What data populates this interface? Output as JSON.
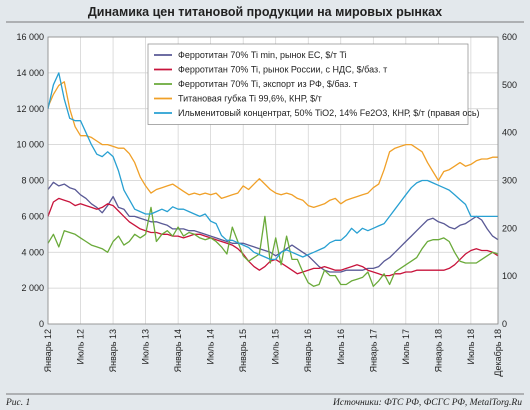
{
  "chart_data": {
    "type": "line",
    "title": "Динамика цен титановой продукции на мировых рынках",
    "x_labels": [
      "Январь 12",
      "Июль 12",
      "Январь 13",
      "Июль 13",
      "Январь 14",
      "Июль 14",
      "Январь 15",
      "Июль 15",
      "Январь 16",
      "Июль 16",
      "Январь 17",
      "Июль 17",
      "Январь 18",
      "Июль 18",
      "Декабрь 18"
    ],
    "x_label_months": [
      0,
      6,
      12,
      18,
      24,
      30,
      36,
      42,
      48,
      54,
      60,
      66,
      72,
      78,
      83
    ],
    "ylim_left": [
      0,
      16000
    ],
    "yticks_left": [
      "0",
      "2 000",
      "4 000",
      "6 000",
      "8 000",
      "10 000",
      "12 000",
      "14 000",
      "16 000"
    ],
    "ylim_right": [
      0,
      600
    ],
    "yticks_right": [
      "0",
      "100",
      "200",
      "300",
      "400",
      "500",
      "600"
    ],
    "grid": true,
    "legend_position": "top-right",
    "series": [
      {
        "name": "Ферротитан 70% Ti min, рынок ЕС, $/т Ti",
        "color": "#5a5a96",
        "axis": "left",
        "values": [
          7500,
          7900,
          7700,
          7800,
          7600,
          7500,
          7200,
          7000,
          6700,
          6500,
          6200,
          6600,
          7100,
          6500,
          6400,
          6000,
          6000,
          5900,
          5800,
          5700,
          5700,
          5600,
          5500,
          5300,
          5300,
          5300,
          5200,
          5200,
          5100,
          5000,
          4900,
          4800,
          4700,
          4600,
          4500,
          4500,
          4500,
          4400,
          4300,
          4200,
          4100,
          4000,
          3800,
          4000,
          4200,
          4400,
          4200,
          4000,
          3800,
          3500,
          3200,
          3000,
          2900,
          2900,
          2900,
          3000,
          3000,
          3000,
          3000,
          3100,
          3100,
          3200,
          3500,
          3700,
          4000,
          4300,
          4600,
          4900,
          5200,
          5500,
          5800,
          5900,
          5700,
          5600,
          5400,
          5300,
          5500,
          5600,
          5800,
          6000,
          5800,
          5300,
          4900,
          4700
        ]
      },
      {
        "name": "Ферротитан 70% Ti, рынок России, с НДС, $/баз. т",
        "color": "#c8143c",
        "axis": "left",
        "values": [
          6000,
          6800,
          7000,
          6900,
          6800,
          6600,
          6700,
          6600,
          6500,
          6400,
          6500,
          6700,
          6600,
          6300,
          6000,
          5700,
          5500,
          5300,
          5200,
          5100,
          5100,
          5000,
          5000,
          4900,
          4900,
          4800,
          4900,
          5000,
          5000,
          4900,
          4800,
          4700,
          4600,
          4500,
          4400,
          4200,
          3900,
          3500,
          3200,
          3000,
          3200,
          3500,
          3600,
          3400,
          3200,
          3000,
          2800,
          2900,
          3000,
          3100,
          3100,
          3200,
          3100,
          3000,
          3000,
          3100,
          3200,
          3300,
          3200,
          3000,
          2900,
          2800,
          2700,
          2700,
          2800,
          2800,
          2900,
          2900,
          3000,
          3000,
          3000,
          3000,
          3000,
          3000,
          3100,
          3300,
          3600,
          3900,
          4100,
          4200,
          4100,
          4100,
          4000,
          3800
        ]
      },
      {
        "name": "Ферротитан 70% Ti, экспорт из РФ, $/баз. т",
        "color": "#6aaa3a",
        "axis": "left",
        "values": [
          4500,
          5000,
          4300,
          5200,
          5100,
          5000,
          4800,
          4600,
          4400,
          4300,
          4200,
          4000,
          4600,
          4900,
          4400,
          4600,
          5000,
          4800,
          5000,
          6500,
          4600,
          5000,
          5200,
          4900,
          5400,
          4900,
          5100,
          5000,
          4800,
          4700,
          4800,
          4600,
          4300,
          3900,
          5400,
          4600,
          3800,
          3500,
          3700,
          3900,
          6000,
          3400,
          4800,
          3300,
          4900,
          3600,
          3600,
          2900,
          2300,
          2100,
          2200,
          3000,
          2700,
          2700,
          2200,
          2200,
          2400,
          2500,
          2600,
          2900,
          2100,
          2400,
          2800,
          2200,
          2900,
          3100,
          3300,
          3500,
          3700,
          4200,
          4600,
          4700,
          4700,
          4800,
          4600,
          4000,
          3500,
          3400,
          3400,
          3400,
          3600,
          3800,
          4000,
          3900
        ]
      },
      {
        "name": "Титановая губка Ti 99,6%, КНР, $/т",
        "color": "#f0a028",
        "axis": "left",
        "values": [
          12100,
          12800,
          13300,
          13500,
          12000,
          11000,
          10500,
          10500,
          10400,
          10200,
          10000,
          10000,
          9900,
          9800,
          9800,
          9500,
          9000,
          8200,
          7700,
          7300,
          7500,
          7600,
          7700,
          7800,
          7600,
          7400,
          7200,
          7300,
          7200,
          7300,
          7200,
          7300,
          7000,
          7100,
          7200,
          7300,
          7700,
          7500,
          7800,
          8100,
          7800,
          7500,
          7300,
          7200,
          7300,
          7200,
          7000,
          6900,
          6600,
          6500,
          6600,
          6700,
          6900,
          7000,
          6700,
          6900,
          7000,
          7100,
          7200,
          7300,
          7600,
          7800,
          8600,
          9600,
          9800,
          9900,
          10000,
          10000,
          9800,
          9600,
          9000,
          8500,
          8000,
          8500,
          8600,
          8800,
          9000,
          8800,
          8900,
          9100,
          9200,
          9200,
          9300,
          9300
        ]
      },
      {
        "name": "Ильменитовый концентрат,  50% TiO2, 14% Fe2O3, КНР, $/т (правая ось)",
        "color": "#28a0d2",
        "axis": "right",
        "values": [
          450,
          500,
          525,
          470,
          430,
          425,
          425,
          400,
          375,
          355,
          350,
          360,
          350,
          320,
          280,
          260,
          240,
          235,
          230,
          230,
          235,
          240,
          235,
          245,
          240,
          240,
          235,
          230,
          225,
          230,
          215,
          210,
          185,
          175,
          175,
          170,
          165,
          160,
          150,
          145,
          140,
          135,
          135,
          150,
          155,
          150,
          145,
          140,
          145,
          150,
          155,
          160,
          170,
          175,
          175,
          185,
          200,
          190,
          200,
          195,
          200,
          205,
          210,
          225,
          240,
          255,
          270,
          285,
          295,
          300,
          300,
          295,
          290,
          285,
          280,
          270,
          260,
          250,
          225,
          225,
          225,
          225,
          225,
          225
        ]
      }
    ]
  },
  "footer": {
    "figure_label": "Рис. 1",
    "source": "Источники: ФТС РФ, ФСГС РФ, MetalTorg.Ru"
  }
}
